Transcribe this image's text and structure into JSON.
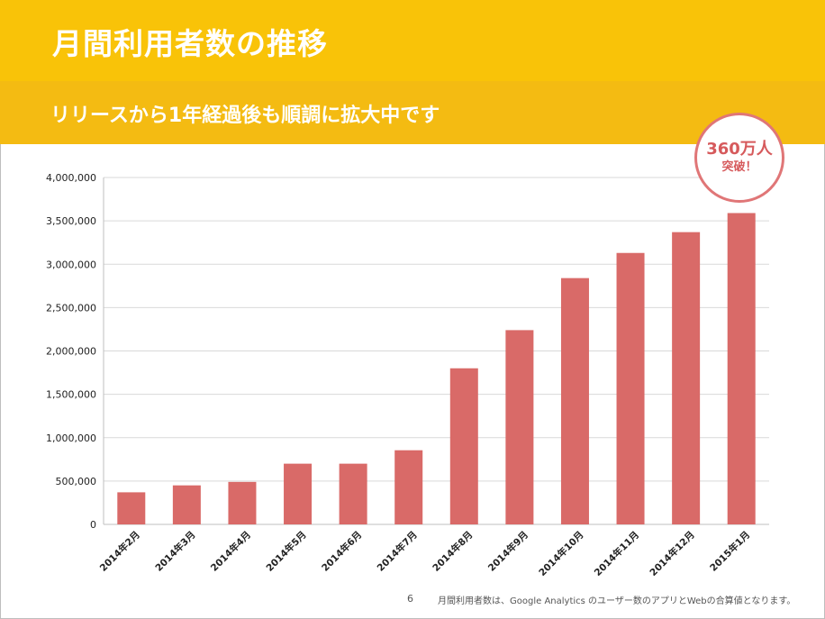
{
  "slide": {
    "title": "月間利用者数の推移",
    "subtitle": "リリースから1年経過後も順調に拡大中です",
    "page_number": "6",
    "footnote": "月間利用者数は、Google Analytics のユーザー数のアプリとWebの合算値となります。"
  },
  "badge": {
    "line1": "360万人",
    "line2": "突破！"
  },
  "colors": {
    "title_band": "#f9c308",
    "subtitle_band": "#f4bb12",
    "bar": "#d96a68",
    "badge_border": "#e07677"
  },
  "chart_data": {
    "type": "bar",
    "categories": [
      "2014年2月",
      "2014年3月",
      "2014年4月",
      "2014年5月",
      "2014年6月",
      "2014年7月",
      "2014年8月",
      "2014年9月",
      "2014年10月",
      "2014年11月",
      "2014年12月",
      "2015年1月"
    ],
    "values": [
      370000,
      450000,
      490000,
      700000,
      700000,
      855000,
      1800000,
      2240000,
      2840000,
      3130000,
      3370000,
      3590000
    ],
    "ylim": [
      0,
      4000000
    ],
    "yticks": [
      0,
      500000,
      1000000,
      1500000,
      2000000,
      2500000,
      3000000,
      3500000,
      4000000
    ],
    "ytick_labels": [
      "0",
      "500,000",
      "1,000,000",
      "1,500,000",
      "2,000,000",
      "2,500,000",
      "3,000,000",
      "3,500,000",
      "4,000,000"
    ],
    "grid": true,
    "legend": false
  }
}
